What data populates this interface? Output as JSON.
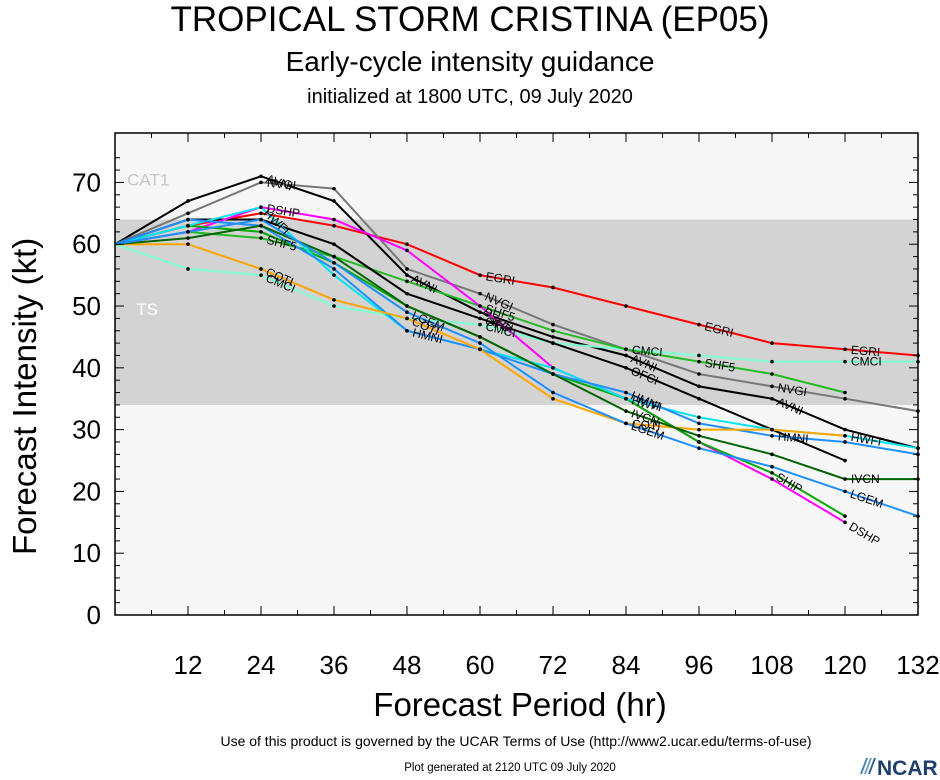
{
  "header": {
    "title": "TROPICAL STORM CRISTINA (EP05)",
    "subtitle": "Early-cycle intensity guidance",
    "init": "initialized at 1800 UTC, 09 July 2020"
  },
  "footer": {
    "terms": "Use of this product is governed by the UCAR Terms of Use (http://www2.ucar.edu/terms-of-use)",
    "generated": "Plot generated at 2120 UTC   09 July 2020",
    "logo_text": "NCAR"
  },
  "colors": {
    "cat1_band": "#f7f7f7",
    "ts_band": "#d3d3d3",
    "td_band": "#f7f7f7"
  },
  "chart_data": {
    "type": "line",
    "title": "TROPICAL STORM CRISTINA (EP05)",
    "xlabel": "Forecast Period (hr)",
    "ylabel": "Forecast Intensity (kt)",
    "xlim": [
      0,
      132
    ],
    "ylim": [
      0,
      78
    ],
    "xticks": [
      12,
      24,
      36,
      48,
      60,
      72,
      84,
      96,
      108,
      120,
      132
    ],
    "yticks": [
      0,
      10,
      20,
      30,
      40,
      50,
      60,
      70
    ],
    "grid": false,
    "legend": "none",
    "bands": [
      {
        "label": "CAT1",
        "from": 64,
        "to": 78
      },
      {
        "label": "TS",
        "from": 34,
        "to": 64
      }
    ],
    "series": [
      {
        "name": "EGRI",
        "color": "#ff0000",
        "x": [
          0,
          12,
          24,
          36,
          48,
          60,
          72,
          84,
          96,
          108,
          120,
          132
        ],
        "y": [
          60,
          63,
          65,
          63,
          60,
          55,
          53,
          50,
          47,
          44,
          43,
          42
        ],
        "labels": [
          {
            "x": 60,
            "text": "EGRI"
          },
          {
            "x": 96,
            "text": "EGRI"
          },
          {
            "x": 120,
            "text": "EGRI"
          }
        ]
      },
      {
        "name": "AVNI",
        "color": "#000000",
        "x": [
          0,
          12,
          24,
          36,
          48,
          60,
          72,
          84,
          96,
          108,
          120,
          132
        ],
        "y": [
          60,
          67,
          71,
          67,
          55,
          49,
          45,
          42,
          37,
          35,
          30,
          27
        ],
        "labels": [
          {
            "x": 24,
            "text": "AVNI"
          },
          {
            "x": 48,
            "text": "AVNI"
          },
          {
            "x": 84,
            "text": "AVNI"
          },
          {
            "x": 108,
            "text": "AVNI"
          }
        ]
      },
      {
        "name": "NVGI",
        "color": "#777777",
        "x": [
          0,
          12,
          24,
          36,
          48,
          60,
          72,
          84,
          96,
          108,
          120,
          132
        ],
        "y": [
          60,
          65,
          70,
          69,
          56,
          52,
          47,
          43,
          39,
          37,
          35,
          33
        ],
        "labels": [
          {
            "x": 24,
            "text": "NVGI"
          },
          {
            "x": 60,
            "text": "NVGI"
          },
          {
            "x": 108,
            "text": "NVGI"
          }
        ]
      },
      {
        "name": "CMCI",
        "color": "#7fffd4",
        "x": [
          0,
          12,
          24,
          36,
          48,
          60,
          72,
          84,
          96,
          108,
          120,
          132
        ],
        "y": [
          60,
          56,
          55,
          50,
          48,
          47,
          44,
          43,
          42,
          41,
          41,
          41
        ],
        "labels": [
          {
            "x": 24,
            "text": "CMCI"
          },
          {
            "x": 60,
            "text": "CMCI"
          },
          {
            "x": 84,
            "text": "CMCI"
          },
          {
            "x": 120,
            "text": "CMCI"
          }
        ]
      },
      {
        "name": "SHF5",
        "color": "#22bb22",
        "x": [
          0,
          12,
          24,
          36,
          48,
          60,
          72,
          84,
          96,
          108,
          120
        ],
        "y": [
          60,
          62,
          61,
          58,
          54,
          50,
          46,
          43,
          41,
          39,
          36
        ],
        "labels": [
          {
            "x": 24,
            "text": "SHF5"
          },
          {
            "x": 60,
            "text": "SHF5"
          },
          {
            "x": 96,
            "text": "SHF5"
          }
        ]
      },
      {
        "name": "OFCI",
        "color": "#000000",
        "x": [
          0,
          12,
          24,
          36,
          48,
          60,
          72,
          84,
          96,
          108,
          120
        ],
        "y": [
          60,
          64,
          64,
          60,
          52,
          48,
          44,
          40,
          35,
          30,
          25
        ],
        "labels": [
          {
            "x": 60,
            "text": "OFCI"
          },
          {
            "x": 84,
            "text": "OFCI"
          }
        ]
      },
      {
        "name": "DSHP",
        "color": "#ff00ff",
        "x": [
          0,
          12,
          24,
          36,
          48,
          60,
          72,
          84,
          96,
          108,
          120
        ],
        "y": [
          60,
          62,
          66,
          64,
          59,
          50,
          40,
          35,
          28,
          22,
          15
        ],
        "labels": [
          {
            "x": 24,
            "text": "DSHP"
          },
          {
            "x": 60,
            "text": "DSHP"
          },
          {
            "x": 120,
            "text": "DSHP"
          }
        ]
      },
      {
        "name": "SHIP",
        "color": "#00aa00",
        "x": [
          0,
          12,
          24,
          36,
          48,
          60,
          72,
          84,
          96,
          108,
          120
        ],
        "y": [
          60,
          63,
          62,
          57,
          50,
          45,
          39,
          35,
          28,
          23,
          16
        ],
        "labels": [
          {
            "x": 108,
            "text": "SHIP"
          }
        ]
      },
      {
        "name": "HWFI",
        "color": "#00e5ee",
        "x": [
          0,
          12,
          24,
          36,
          48,
          60,
          72,
          84,
          96,
          108,
          120,
          132
        ],
        "y": [
          60,
          63,
          66,
          55,
          46,
          43,
          40,
          35,
          32,
          30,
          29,
          27
        ],
        "labels": [
          {
            "x": 24,
            "text": "HWFI"
          },
          {
            "x": 84,
            "text": "HWFI"
          },
          {
            "x": 120,
            "text": "HWFI"
          }
        ]
      },
      {
        "name": "HMNI",
        "color": "#1e90ff",
        "x": [
          0,
          12,
          24,
          36,
          48,
          60,
          72,
          84,
          96,
          108,
          120,
          132
        ],
        "y": [
          60,
          64,
          63,
          56,
          46,
          43,
          39,
          36,
          31,
          29,
          28,
          26
        ],
        "labels": [
          {
            "x": 48,
            "text": "HMNI"
          },
          {
            "x": 84,
            "text": "HMNI"
          },
          {
            "x": 108,
            "text": "HMNI"
          }
        ]
      },
      {
        "name": "COTI",
        "color": "#ffa500",
        "x": [
          0,
          12,
          24,
          36,
          48,
          60,
          72,
          84,
          96,
          108,
          120
        ],
        "y": [
          60,
          60,
          56,
          51,
          48,
          43,
          35,
          31,
          30,
          30,
          29
        ],
        "labels": [
          {
            "x": 24,
            "text": "COTI"
          },
          {
            "x": 48,
            "text": "COTI"
          },
          {
            "x": 84,
            "text": "COTI"
          }
        ]
      },
      {
        "name": "IVCN",
        "color": "#006400",
        "x": [
          0,
          12,
          24,
          36,
          48,
          60,
          72,
          84,
          96,
          108,
          120,
          132
        ],
        "y": [
          60,
          61,
          63,
          58,
          50,
          45,
          39,
          33,
          29,
          26,
          22,
          22
        ],
        "labels": [
          {
            "x": 84,
            "text": "IVCN"
          },
          {
            "x": 120,
            "text": "IVCN"
          }
        ]
      },
      {
        "name": "LGEM",
        "color": "#1e90ff",
        "x": [
          0,
          12,
          24,
          36,
          48,
          60,
          72,
          84,
          96,
          108,
          120,
          132
        ],
        "y": [
          60,
          62,
          64,
          57,
          49,
          44,
          36,
          31,
          27,
          24,
          20,
          16
        ],
        "labels": [
          {
            "x": 48,
            "text": "LGEM"
          },
          {
            "x": 84,
            "text": "LGEM"
          },
          {
            "x": 120,
            "text": "LGEM"
          }
        ]
      }
    ]
  }
}
